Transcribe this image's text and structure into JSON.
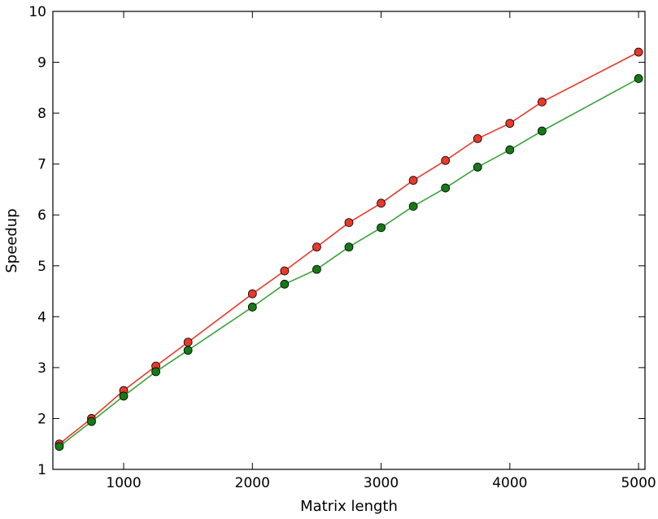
{
  "chart_data": {
    "type": "line",
    "title": "",
    "xlabel": "Matrix length",
    "ylabel": "Speedup",
    "xlim": [
      450,
      5050
    ],
    "ylim": [
      1,
      10
    ],
    "x_ticks": [
      1000,
      2000,
      3000,
      4000,
      5000
    ],
    "y_ticks": [
      1,
      2,
      3,
      4,
      5,
      6,
      7,
      8,
      9,
      10
    ],
    "grid": false,
    "legend": "none",
    "series": [
      {
        "color": "#e8392a",
        "line_color": "#e8392a",
        "marker": "circle",
        "x": [
          500,
          750,
          1000,
          1250,
          1500,
          2000,
          2250,
          2500,
          2750,
          3000,
          3250,
          3500,
          3750,
          4000,
          4250,
          5000
        ],
        "y": [
          1.5,
          2.0,
          2.55,
          3.03,
          3.5,
          4.45,
          4.9,
          5.37,
          5.85,
          6.23,
          6.68,
          7.07,
          7.5,
          7.8,
          8.22,
          9.2
        ]
      },
      {
        "color": "#157a15",
        "line_color": "#3aa33a",
        "marker": "circle",
        "x": [
          500,
          750,
          1000,
          1250,
          1500,
          2000,
          2250,
          2500,
          2750,
          3000,
          3250,
          3500,
          3750,
          4000,
          4250,
          5000
        ],
        "y": [
          1.45,
          1.94,
          2.44,
          2.92,
          3.34,
          4.19,
          4.64,
          4.93,
          5.37,
          5.75,
          6.17,
          6.53,
          6.94,
          7.28,
          7.65,
          8.68
        ]
      }
    ]
  }
}
